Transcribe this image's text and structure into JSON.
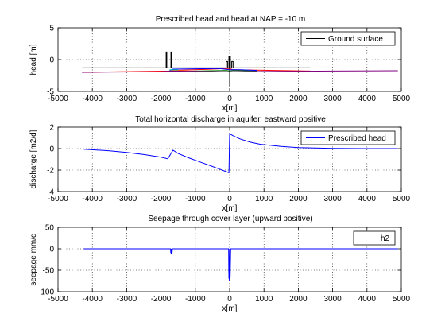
{
  "chart_data": [
    {
      "type": "line",
      "title": "Prescribed head and head at NAP = -10 m",
      "xlabel": "x[m]",
      "ylabel": "head [m]",
      "xlim": [
        -5000,
        5000
      ],
      "ylim": [
        -5,
        5
      ],
      "xticks": [
        -5000,
        -4000,
        -3000,
        -2000,
        -1000,
        0,
        1000,
        2000,
        3000,
        4000,
        5000
      ],
      "yticks": [
        -5,
        0,
        5
      ],
      "grid": true,
      "legend_position": "top-right",
      "series": [
        {
          "name": "Ground surface",
          "color": "#000000",
          "x": [
            -4300,
            -1850,
            -1850,
            -1830,
            -1830,
            -1710,
            -1710,
            -1690,
            -1690,
            -1600,
            -1600,
            -100,
            -100,
            -60,
            -60,
            -20,
            -20,
            20,
            20,
            60,
            60,
            100,
            100,
            2350,
            2350
          ],
          "y": [
            -1.3,
            -1.3,
            1.2,
            1.2,
            -1.3,
            -1.3,
            1.2,
            1.2,
            -1.3,
            -1.3,
            -1.3,
            -1.3,
            -0.3,
            -0.3,
            -1.3,
            -1.3,
            0.5,
            0.5,
            -1.3,
            -1.3,
            -0.3,
            -0.3,
            -1.3,
            -1.3,
            -1.3
          ]
        },
        {
          "color": "#ff0000",
          "x": [
            -4300,
            -1750,
            -1650,
            -1000,
            -100,
            0,
            100,
            2350
          ],
          "y": [
            -2.0,
            -1.8,
            -1.7,
            -1.6,
            -1.4,
            -1.4,
            -1.6,
            -1.8
          ]
        },
        {
          "color": "#008000",
          "x": [
            -1700,
            -1000,
            -100,
            0,
            100,
            800
          ],
          "y": [
            -1.9,
            -1.8,
            -1.7,
            -1.8,
            -1.7,
            -1.8
          ]
        },
        {
          "color": "#0000ff",
          "x": [
            -1750,
            -1650,
            -300,
            0,
            300,
            800
          ],
          "y": [
            -1.7,
            -1.5,
            -1.4,
            -1.6,
            -1.6,
            -1.7
          ]
        },
        {
          "color": "#e6c000",
          "x": [
            -1800,
            -1600,
            -1200
          ],
          "y": [
            -1.8,
            -1.75,
            -1.8
          ]
        },
        {
          "color": "#00bfbf",
          "x": [
            -1750,
            -1500
          ],
          "y": [
            -1.6,
            -1.6
          ]
        },
        {
          "color": "#800080",
          "x": [
            -4300,
            -2000,
            -1700,
            0,
            1500,
            3000,
            4900
          ],
          "y": [
            -2.0,
            -1.9,
            -1.8,
            -1.9,
            -1.85,
            -1.8,
            -1.75
          ]
        },
        {
          "color": "#000000",
          "x": [
            0,
            0
          ],
          "y": [
            0.5,
            -4.2
          ]
        }
      ]
    },
    {
      "type": "line",
      "title": "Total horizontal discharge in aquifer, eastward positive",
      "xlabel": "x[m]",
      "ylabel": "discharge [m2/d]",
      "xlim": [
        -5000,
        5000
      ],
      "ylim": [
        -4,
        2
      ],
      "xticks": [
        -5000,
        -4000,
        -3000,
        -2000,
        -1000,
        0,
        1000,
        2000,
        3000,
        4000,
        5000
      ],
      "yticks": [
        -4,
        -2,
        0,
        2
      ],
      "grid": true,
      "legend_position": "top-right",
      "series": [
        {
          "name": "Prescribed head",
          "color": "#0000ff",
          "x": [
            -4250,
            -3500,
            -3000,
            -2500,
            -2000,
            -1800,
            -1700,
            -1650,
            -1500,
            -1200,
            -900,
            -600,
            -300,
            -100,
            -20,
            0,
            20,
            100,
            300,
            600,
            900,
            1200,
            1500,
            2000,
            2500,
            3000,
            4000,
            4900
          ],
          "y": [
            -0.05,
            -0.2,
            -0.35,
            -0.55,
            -0.8,
            -0.95,
            -0.4,
            -0.15,
            -0.45,
            -0.85,
            -1.2,
            -1.55,
            -1.9,
            -2.15,
            -2.25,
            1.4,
            1.35,
            1.2,
            0.9,
            0.6,
            0.4,
            0.3,
            0.2,
            0.1,
            0.05,
            0.02,
            0.0,
            0.0
          ]
        }
      ]
    },
    {
      "type": "line",
      "title": "Seepage through cover layer (upward positive)",
      "xlabel": "x[m]",
      "ylabel": "seepage mm/d",
      "xlim": [
        -5000,
        5000
      ],
      "ylim": [
        -100,
        50
      ],
      "xticks": [
        -5000,
        -4000,
        -3000,
        -2000,
        -1000,
        0,
        1000,
        2000,
        3000,
        4000,
        5000
      ],
      "yticks": [
        -100,
        -50,
        0,
        50
      ],
      "grid": true,
      "legend_position": "top-right",
      "series": [
        {
          "name": "h2",
          "color": "#0000ff",
          "x": [
            -4250,
            -1720,
            -1715,
            -1710,
            -1700,
            -1695,
            -1690,
            -1680,
            -1670,
            -1660,
            -30,
            -25,
            -20,
            -15,
            -10,
            -5,
            0,
            5,
            10,
            15,
            20,
            25,
            30,
            4900
          ],
          "y": [
            0,
            0,
            -10,
            0,
            -13,
            -3,
            0,
            -14,
            0,
            0,
            0,
            -45,
            -70,
            -30,
            -75,
            -20,
            0,
            -70,
            -30,
            -68,
            -40,
            -20,
            0,
            0
          ]
        }
      ]
    }
  ]
}
